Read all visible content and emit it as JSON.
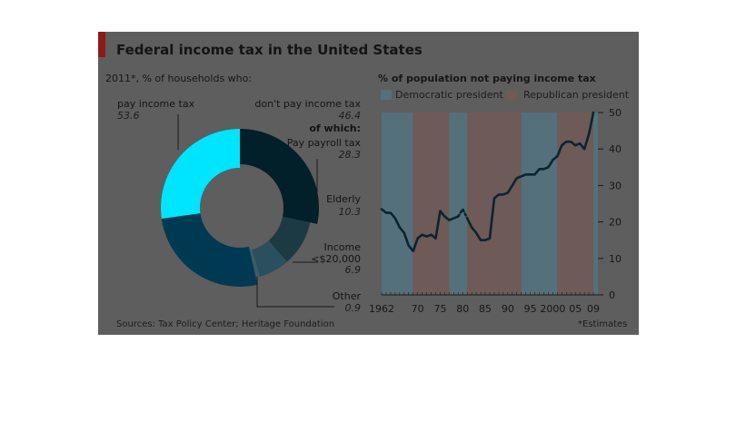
{
  "title": "Federal income tax in the United States",
  "sources": "Sources: Tax Policy Center; Heritage Foundation",
  "estimates_note": "*Estimates",
  "colors": {
    "panel": "#5e5e5e",
    "accent_red": "#8f1a1a",
    "democratic": "#54707a",
    "republican": "#6e5a56",
    "line": "#0a2530",
    "donut_pay": "#00e5ff",
    "donut_outer_dont": "#003a52",
    "donut_payroll": "#02202a",
    "donut_elderly": "#1b3a44",
    "donut_income": "#2a4f5e",
    "donut_other": "#3b5c68"
  },
  "chart_data": [
    {
      "type": "pie",
      "subtitle": "2011*, % of households who:",
      "outer": [
        {
          "label": "pay income tax",
          "value": 53.6
        },
        {
          "label": "don't pay income tax",
          "value": 46.4
        }
      ],
      "inner_heading": "of which:",
      "inner": [
        {
          "label": "Pay payroll tax",
          "value": 28.3
        },
        {
          "label": "Elderly",
          "value": 10.3
        },
        {
          "label": "Income <$20,000",
          "value": 6.9
        },
        {
          "label": "Other",
          "value": 0.9
        }
      ]
    },
    {
      "type": "line",
      "subtitle": "% of population not paying income tax",
      "legend": [
        {
          "label": "Democratic president",
          "color": "#54707a"
        },
        {
          "label": "Republican president",
          "color": "#6e5a56"
        }
      ],
      "xlim": [
        1962,
        2010
      ],
      "ylim": [
        0,
        50
      ],
      "x_ticks": [
        "1962",
        "70",
        "75",
        "80",
        "85",
        "90",
        "95",
        "2000",
        "05",
        "09"
      ],
      "x_tick_values": [
        1962,
        1970,
        1975,
        1980,
        1985,
        1990,
        1995,
        2000,
        2005,
        2009
      ],
      "y_ticks": [
        0,
        10,
        20,
        30,
        40,
        50
      ],
      "presidency_bands": [
        {
          "party": "Democratic",
          "from": 1962,
          "to": 1969
        },
        {
          "party": "Republican",
          "from": 1969,
          "to": 1977
        },
        {
          "party": "Democratic",
          "from": 1977,
          "to": 1981
        },
        {
          "party": "Republican",
          "from": 1981,
          "to": 1993
        },
        {
          "party": "Democratic",
          "from": 1993,
          "to": 2001
        },
        {
          "party": "Republican",
          "from": 2001,
          "to": 2009
        },
        {
          "party": "Democratic",
          "from": 2009,
          "to": 2010
        }
      ],
      "series": [
        {
          "x": [
            1962,
            1963,
            1964,
            1965,
            1966,
            1967,
            1968,
            1969,
            1970,
            1971,
            1972,
            1973,
            1974,
            1975,
            1976,
            1977,
            1978,
            1979
          ],
          "y": [
            23.5,
            22.5,
            22.5,
            21,
            18.5,
            17,
            13.5,
            12,
            15.5,
            16.5,
            16,
            16.5,
            15.5,
            23,
            21.5,
            20.5,
            21,
            21.5
          ]
        },
        {
          "x": [
            1979,
            1980,
            1981
          ],
          "y": [
            21.5,
            23.5,
            21
          ],
          "estimated": true
        },
        {
          "x": [
            1981,
            1982,
            1983,
            1984,
            1985,
            1986,
            1987,
            1988,
            1989,
            1990,
            1991,
            1992,
            1993,
            1994,
            1995,
            1996,
            1997,
            1998,
            1999,
            2000,
            2001,
            2002,
            2003,
            2004,
            2005,
            2006,
            2007,
            2008,
            2009
          ],
          "y": [
            21,
            18.5,
            17,
            15,
            15,
            15.5,
            26.5,
            27.5,
            27.5,
            28,
            30,
            32,
            32.5,
            33,
            33,
            33,
            34.5,
            34.5,
            35,
            37,
            38,
            41,
            42,
            42,
            41,
            41.5,
            40,
            44,
            50
          ]
        }
      ]
    }
  ]
}
